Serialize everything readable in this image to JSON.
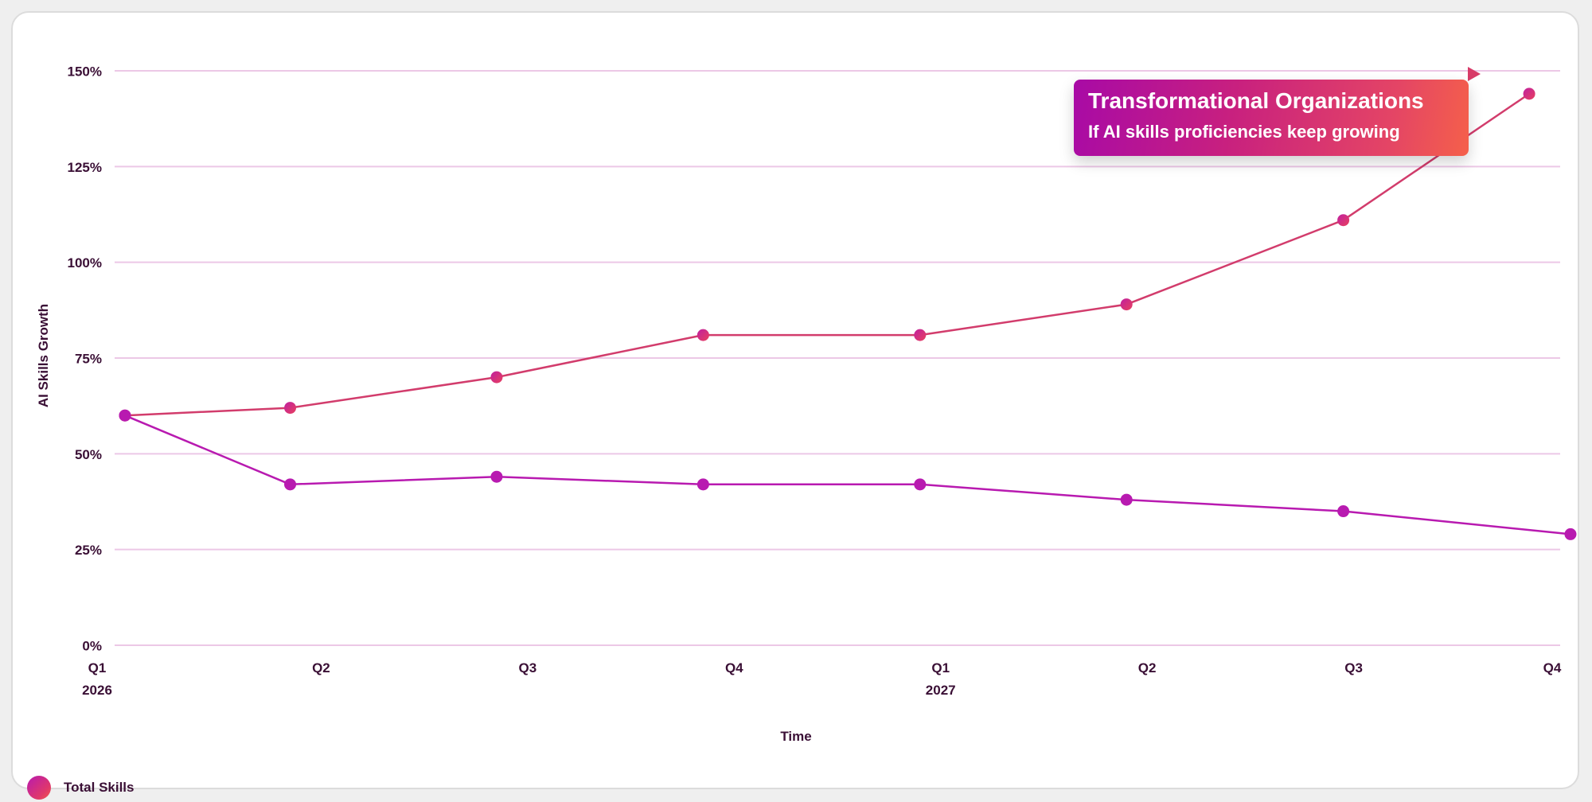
{
  "chart_data": {
    "type": "line",
    "ylabel": "AI Skills Growth",
    "xlabel": "Time",
    "ylim": [
      0,
      150
    ],
    "y_ticks": [
      "0%",
      "25%",
      "50%",
      "75%",
      "100%",
      "125%",
      "150%"
    ],
    "x_ticks": [
      {
        "quarter": "Q1",
        "year": "2026"
      },
      {
        "quarter": "Q2",
        "year": ""
      },
      {
        "quarter": "Q3",
        "year": ""
      },
      {
        "quarter": "Q4",
        "year": ""
      },
      {
        "quarter": "Q1",
        "year": "2027"
      },
      {
        "quarter": "Q2",
        "year": ""
      },
      {
        "quarter": "Q3",
        "year": ""
      },
      {
        "quarter": "Q4",
        "year": ""
      }
    ],
    "series": [
      {
        "key": "upper",
        "color": "#d23c6c",
        "points": [
          {
            "x": 0.05,
            "y": 60
          },
          {
            "x": 0.85,
            "y": 62
          },
          {
            "x": 1.85,
            "y": 70
          },
          {
            "x": 2.85,
            "y": 81
          },
          {
            "x": 3.9,
            "y": 81
          },
          {
            "x": 4.9,
            "y": 89
          },
          {
            "x": 5.95,
            "y": 111
          },
          {
            "x": 6.85,
            "y": 144
          }
        ]
      },
      {
        "key": "lower",
        "color": "#b81ab0",
        "points": [
          {
            "x": 0.05,
            "y": 60
          },
          {
            "x": 0.85,
            "y": 42
          },
          {
            "x": 1.85,
            "y": 44
          },
          {
            "x": 2.85,
            "y": 42
          },
          {
            "x": 3.9,
            "y": 42
          },
          {
            "x": 4.9,
            "y": 38
          },
          {
            "x": 5.95,
            "y": 35
          },
          {
            "x": 7.05,
            "y": 29
          }
        ]
      }
    ],
    "legend": {
      "position": "bottom-left",
      "entries": [
        "Total Skills"
      ]
    },
    "annotation": {
      "title": "Transformational Organizations",
      "subtitle": "If AI skills proficiencies keep growing",
      "position": "top-right"
    },
    "grid": true,
    "grid_color": "#ecc8e6"
  }
}
